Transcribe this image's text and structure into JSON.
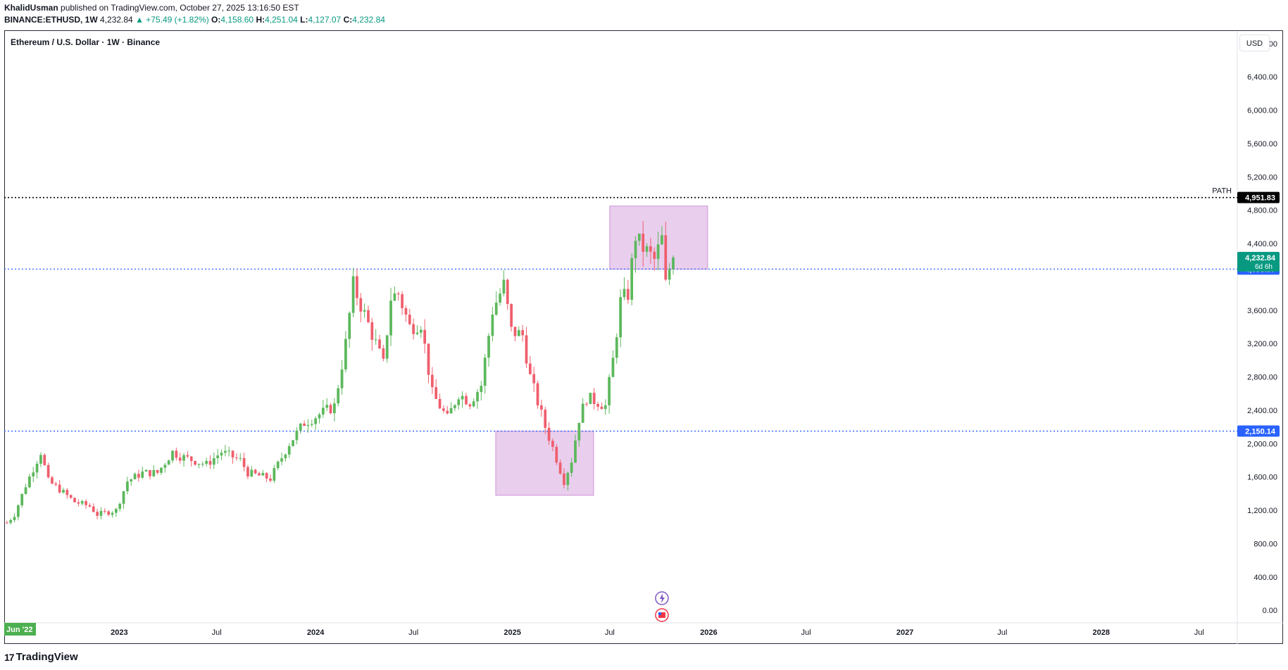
{
  "header": {
    "author": "KhalidUsman",
    "published_text": "published on TradingView.com, October 27, 2025 13:16:50 EST",
    "symbol_line": "BINANCE:ETHUSD, 1W",
    "last": "4,232.84",
    "change": "▲ +75.49 (+1.82%)",
    "o_label": "O:",
    "o_value": "4,158.60",
    "h_label": "H:",
    "h_value": "4,251.04",
    "l_label": "L:",
    "l_value": "4,127.07",
    "c_label": "C:",
    "c_value": "4,232.84"
  },
  "chart_title": "Ethereum / U.S. Dollar · 1W · Binance",
  "currency_button": "USD",
  "footer": {
    "brand": "TradingView",
    "logo_mark": "17"
  },
  "colors": {
    "up": "#089981",
    "down": "#f23645",
    "candle_up": "#5cb85c",
    "candle_down": "#ef5f6d",
    "level_blue": "#2962ff",
    "zone_fill": "#e1bee7",
    "zone_stroke": "#ce93d8",
    "path_line": "#000000",
    "start_label_bg": "#4caf50"
  },
  "chart_data": {
    "type": "candlestick",
    "symbol": "BINANCE:ETHUSD",
    "interval": "1W",
    "y_axis": {
      "ticks": [
        0,
        400,
        800,
        1200,
        1600,
        2000,
        2400,
        2800,
        3200,
        3600,
        4000,
        4400,
        4800,
        5200,
        5600,
        6000,
        6400,
        6800
      ],
      "tick_labels": [
        "0.00",
        "400.00",
        "800.00",
        "1,200.00",
        "1,600.00",
        "2,000.00",
        "2,400.00",
        "2,800.00",
        "3,200.00",
        "3,600.00",
        "",
        "4,400.00",
        "4,800.00",
        "5,200.00",
        "5,600.00",
        "6,000.00",
        "6,400.00",
        "6,800.00"
      ],
      "range": [
        -150,
        6950
      ]
    },
    "x_axis": {
      "range": [
        "2022-06-01",
        "2028-09-10"
      ],
      "ticks": [
        {
          "date": "2022-06-01",
          "label": "Jun '22",
          "highlight": true
        },
        {
          "date": "2023-01-01",
          "label": "2023",
          "bold": true
        },
        {
          "date": "2023-07-01",
          "label": "Jul"
        },
        {
          "date": "2024-01-01",
          "label": "2024",
          "bold": true
        },
        {
          "date": "2024-07-01",
          "label": "Jul"
        },
        {
          "date": "2025-01-01",
          "label": "2025",
          "bold": true
        },
        {
          "date": "2025-07-01",
          "label": "Jul"
        },
        {
          "date": "2026-01-01",
          "label": "2026",
          "bold": true
        },
        {
          "date": "2026-07-01",
          "label": "Jul"
        },
        {
          "date": "2027-01-01",
          "label": "2027",
          "bold": true
        },
        {
          "date": "2027-07-01",
          "label": "Jul"
        },
        {
          "date": "2028-01-01",
          "label": "2028",
          "bold": true
        },
        {
          "date": "2028-07-01",
          "label": "Jul"
        }
      ]
    },
    "levels": [
      {
        "name": "PATH",
        "value": 4951.83,
        "label": "4,951.83",
        "style": "dotted-black"
      },
      {
        "value": 4093.57,
        "label": "4,093.57",
        "style": "dotted-blue"
      },
      {
        "value": 2150.14,
        "label": "2,150.14",
        "style": "dotted-blue"
      }
    ],
    "current_price": {
      "value": 4232.84,
      "label": "4,232.84",
      "countdown": "6d 6h"
    },
    "zones": [
      {
        "x0": "2024-12-01",
        "x1": "2025-06-01",
        "y0": 1380,
        "y1": 2150
      },
      {
        "x0": "2025-07-01",
        "x1": "2025-12-30",
        "y0": 4093,
        "y1": 4850
      }
    ],
    "anchors": [
      [
        "2022-06-06",
        1050
      ],
      [
        "2022-06-20",
        1150
      ],
      [
        "2022-07-11",
        1500
      ],
      [
        "2022-08-08",
        1900
      ],
      [
        "2022-08-22",
        1550
      ],
      [
        "2022-09-12",
        1450
      ],
      [
        "2022-10-10",
        1300
      ],
      [
        "2022-11-07",
        1250
      ],
      [
        "2022-11-21",
        1150
      ],
      [
        "2022-12-26",
        1200
      ],
      [
        "2023-01-16",
        1550
      ],
      [
        "2023-02-13",
        1650
      ],
      [
        "2023-03-13",
        1650
      ],
      [
        "2023-04-10",
        1900
      ],
      [
        "2023-04-24",
        1850
      ],
      [
        "2023-06-12",
        1750
      ],
      [
        "2023-07-10",
        1900
      ],
      [
        "2023-08-14",
        1800
      ],
      [
        "2023-08-28",
        1650
      ],
      [
        "2023-10-09",
        1580
      ],
      [
        "2023-10-23",
        1750
      ],
      [
        "2023-11-13",
        2000
      ],
      [
        "2023-12-11",
        2250
      ],
      [
        "2024-01-08",
        2350
      ],
      [
        "2024-02-05",
        2450
      ],
      [
        "2024-02-26",
        3200
      ],
      [
        "2024-03-11",
        3900
      ],
      [
        "2024-04-01",
        3550
      ],
      [
        "2024-04-22",
        3200
      ],
      [
        "2024-05-06",
        2950
      ],
      [
        "2024-05-20",
        3750
      ],
      [
        "2024-06-03",
        3800
      ],
      [
        "2024-06-24",
        3400
      ],
      [
        "2024-07-15",
        3450
      ],
      [
        "2024-08-05",
        2600
      ],
      [
        "2024-09-02",
        2300
      ],
      [
        "2024-09-23",
        2600
      ],
      [
        "2024-10-14",
        2500
      ],
      [
        "2024-11-04",
        2700
      ],
      [
        "2024-11-25",
        3600
      ],
      [
        "2024-12-16",
        3900
      ],
      [
        "2024-12-30",
        3350
      ],
      [
        "2025-01-20",
        3300
      ],
      [
        "2025-02-03",
        2800
      ],
      [
        "2025-03-03",
        2200
      ],
      [
        "2025-03-17",
        1950
      ],
      [
        "2025-04-07",
        1550
      ],
      [
        "2025-04-21",
        1800
      ],
      [
        "2025-05-05",
        2300
      ],
      [
        "2025-05-19",
        2550
      ],
      [
        "2025-06-09",
        2500
      ],
      [
        "2025-06-23",
        2450
      ],
      [
        "2025-07-07",
        3000
      ],
      [
        "2025-07-21",
        3700
      ],
      [
        "2025-08-04",
        3800
      ],
      [
        "2025-08-18",
        4500
      ],
      [
        "2025-08-25",
        4400
      ],
      [
        "2025-09-08",
        4300
      ],
      [
        "2025-09-22",
        4200
      ],
      [
        "2025-10-06",
        4450
      ],
      [
        "2025-10-13",
        3900
      ],
      [
        "2025-10-20",
        4100
      ],
      [
        "2025-10-27",
        4232.84
      ]
    ]
  }
}
